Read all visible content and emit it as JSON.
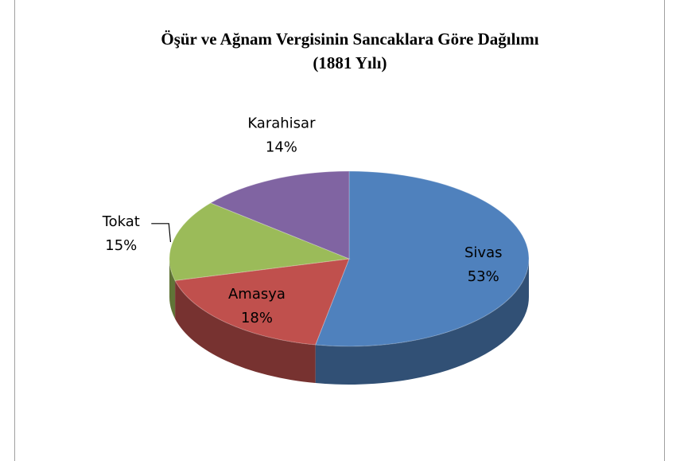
{
  "chart_data": {
    "type": "pie3d",
    "title": "Öşür ve Ağnam Vergisinin Sancaklara Göre Dağılımı",
    "subtitle": "(1881 Yılı)",
    "categories": [
      "Sivas",
      "Amasya",
      "Tokat",
      "Karahisar"
    ],
    "values": [
      53,
      18,
      15,
      14
    ],
    "value_labels": [
      "53%",
      "18%",
      "15%",
      "14%"
    ],
    "colors": [
      "#4f81bd",
      "#c0504d",
      "#9bbb59",
      "#8064a2"
    ]
  }
}
